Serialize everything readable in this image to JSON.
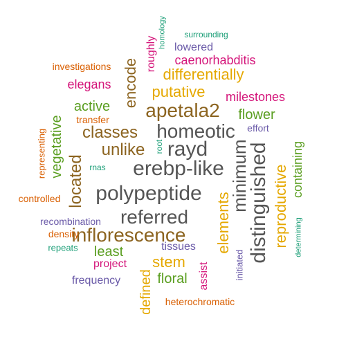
{
  "palette": {
    "dark_gray": "#555555",
    "brown": "#8c6420",
    "gold": "#e5a800",
    "magenta": "#d4157a",
    "green": "#5a9e20",
    "orange": "#d95f02",
    "purple": "#6a5aa8",
    "teal": "#1b9e77"
  },
  "words": [
    {
      "text": "erebp-like",
      "color": "dark_gray"
    },
    {
      "text": "polypeptide",
      "color": "dark_gray"
    },
    {
      "text": "referred",
      "color": "dark_gray"
    },
    {
      "text": "homeotic",
      "color": "dark_gray"
    },
    {
      "text": "rayd",
      "color": "dark_gray"
    },
    {
      "text": "distinguished",
      "color": "dark_gray"
    },
    {
      "text": "minimum",
      "color": "dark_gray"
    },
    {
      "text": "inflorescence",
      "color": "brown"
    },
    {
      "text": "apetala2",
      "color": "brown"
    },
    {
      "text": "classes",
      "color": "brown"
    },
    {
      "text": "unlike",
      "color": "brown"
    },
    {
      "text": "located",
      "color": "brown"
    },
    {
      "text": "encode",
      "color": "brown"
    },
    {
      "text": "putative",
      "color": "gold"
    },
    {
      "text": "differentially",
      "color": "gold"
    },
    {
      "text": "stem",
      "color": "gold"
    },
    {
      "text": "defined",
      "color": "gold"
    },
    {
      "text": "elements",
      "color": "gold"
    },
    {
      "text": "reproductive",
      "color": "gold"
    },
    {
      "text": "caenorhabditis",
      "color": "magenta"
    },
    {
      "text": "milestones",
      "color": "magenta"
    },
    {
      "text": "elegans",
      "color": "magenta"
    },
    {
      "text": "project",
      "color": "magenta"
    },
    {
      "text": "assist",
      "color": "magenta"
    },
    {
      "text": "roughly",
      "color": "magenta"
    },
    {
      "text": "active",
      "color": "green"
    },
    {
      "text": "flower",
      "color": "green"
    },
    {
      "text": "least",
      "color": "green"
    },
    {
      "text": "floral",
      "color": "green"
    },
    {
      "text": "vegetative",
      "color": "green"
    },
    {
      "text": "containing",
      "color": "green"
    },
    {
      "text": "investigations",
      "color": "orange"
    },
    {
      "text": "transfer",
      "color": "orange"
    },
    {
      "text": "controlled",
      "color": "orange"
    },
    {
      "text": "density",
      "color": "orange"
    },
    {
      "text": "heterochromatic",
      "color": "orange"
    },
    {
      "text": "representing",
      "color": "orange"
    },
    {
      "text": "lowered",
      "color": "purple"
    },
    {
      "text": "effort",
      "color": "purple"
    },
    {
      "text": "recombination",
      "color": "purple"
    },
    {
      "text": "tissues",
      "color": "purple"
    },
    {
      "text": "frequency",
      "color": "purple"
    },
    {
      "text": "initiated",
      "color": "purple"
    },
    {
      "text": "surrounding",
      "color": "teal"
    },
    {
      "text": "rnas",
      "color": "teal"
    },
    {
      "text": "repeats",
      "color": "teal"
    },
    {
      "text": "homology",
      "color": "teal"
    },
    {
      "text": "root",
      "color": "teal"
    },
    {
      "text": "determining",
      "color": "teal"
    }
  ]
}
